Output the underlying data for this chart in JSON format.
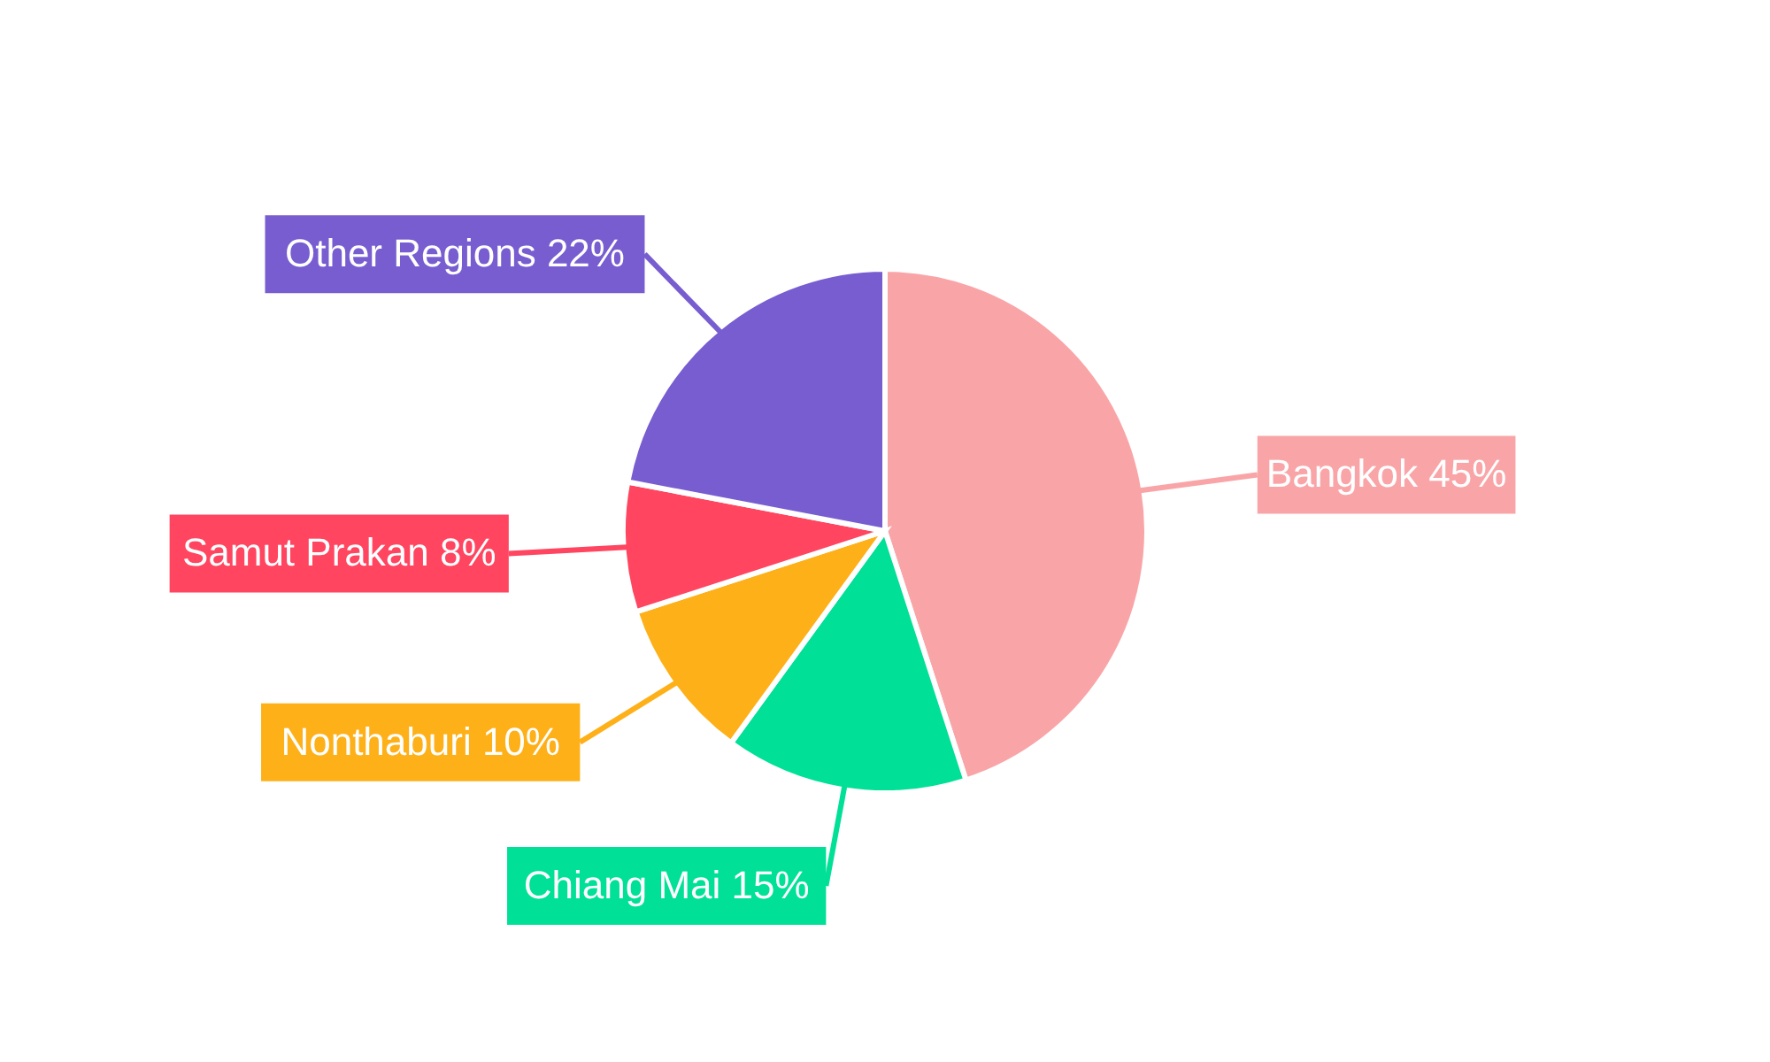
{
  "chart_data": {
    "type": "pie",
    "categories": [
      "Bangkok",
      "Chiang Mai",
      "Nonthaburi",
      "Samut Prakan",
      "Other Regions"
    ],
    "values": [
      45,
      15,
      10,
      8,
      22
    ],
    "value_labels": [
      "45%",
      "15%",
      "10%",
      "8%",
      "22%"
    ],
    "colors": [
      "#f9a5a8",
      "#00e096",
      "#feb019",
      "#ff4560",
      "#775dd0"
    ]
  }
}
